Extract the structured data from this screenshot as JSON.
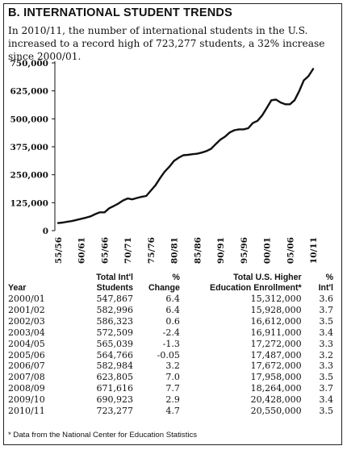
{
  "header": {
    "title": "B.  INTERNATIONAL STUDENT TRENDS",
    "subtitle": "In 2010/11, the number of international students in the U.S. increased to a record high of 723,277 students, a 32% increase since 2000/01."
  },
  "chart_data": {
    "type": "line",
    "title": "",
    "xlabel": "",
    "ylabel": "",
    "y_ticks": [
      "750,000",
      "625,000",
      "500,000",
      "375,000",
      "250,000",
      "125,000",
      "0"
    ],
    "y_tick_values": [
      750000,
      625000,
      500000,
      375000,
      250000,
      125000,
      0
    ],
    "ylim": [
      0,
      750000
    ],
    "x_ticks": [
      "55/56",
      "60/61",
      "65/66",
      "70/71",
      "75/76",
      "80/81",
      "85/86",
      "90/91",
      "95/96",
      "00/01",
      "05/06",
      "10/11"
    ],
    "grid": false,
    "series": [
      {
        "x": [
          1955,
          1956,
          1957,
          1958,
          1959,
          1960,
          1961,
          1962,
          1963,
          1964,
          1965,
          1966,
          1967,
          1968,
          1969,
          1970,
          1971,
          1972,
          1973,
          1974,
          1975,
          1976,
          1977,
          1978,
          1979,
          1980,
          1981,
          1982,
          1983,
          1984,
          1985,
          1986,
          1987,
          1988,
          1989,
          1990,
          1991,
          1992,
          1993,
          1994,
          1995,
          1996,
          1997,
          1998,
          1999,
          2000,
          2001,
          2002,
          2003,
          2004,
          2005,
          2006,
          2007,
          2008,
          2009,
          2010
        ],
        "values": [
          34000,
          36000,
          40000,
          43000,
          48000,
          53000,
          58000,
          64000,
          74000,
          82000,
          82000,
          100000,
          110000,
          121000,
          135000,
          144000,
          140000,
          146000,
          151000,
          155000,
          179000,
          203000,
          235000,
          264000,
          286000,
          312000,
          326000,
          337000,
          339000,
          342000,
          344000,
          349000,
          356000,
          366000,
          387000,
          407000,
          420000,
          439000,
          449000,
          453000,
          453000,
          458000,
          481000,
          491000,
          515000,
          548000,
          583000,
          586000,
          573000,
          565000,
          565000,
          583000,
          624000,
          672000,
          691000,
          723000
        ]
      }
    ]
  },
  "table": {
    "headers": [
      [
        "Year"
      ],
      [
        "Total Int'l",
        "Students"
      ],
      [
        "%",
        "Change"
      ],
      [
        "Total U.S. Higher",
        "Education Enrollment*"
      ],
      [
        "%",
        "Int'l"
      ]
    ],
    "rows": [
      [
        "2000/01",
        "547,867",
        "6.4",
        "15,312,000",
        "3.6"
      ],
      [
        "2001/02",
        "582,996",
        "6.4",
        "15,928,000",
        "3.7"
      ],
      [
        "2002/03",
        "586,323",
        "0.6",
        "16,612,000",
        "3.5"
      ],
      [
        "2003/04",
        "572,509",
        "-2.4",
        "16,911,000",
        "3.4"
      ],
      [
        "2004/05",
        "565,039",
        "-1.3",
        "17,272,000",
        "3.3"
      ],
      [
        "2005/06",
        "564,766",
        "-0.05",
        "17,487,000",
        "3.2"
      ],
      [
        "2006/07",
        "582,984",
        "3.2",
        "17,672,000",
        "3.3"
      ],
      [
        "2007/08",
        "623,805",
        "7.0",
        "17,958,000",
        "3.5"
      ],
      [
        "2008/09",
        "671,616",
        "7.7",
        "18,264,000",
        "3.7"
      ],
      [
        "2009/10",
        "690,923",
        "2.9",
        "20,428,000",
        "3.4"
      ],
      [
        "2010/11",
        "723,277",
        "4.7",
        "20,550,000",
        "3.5"
      ]
    ]
  },
  "footnote": "* Data from the National Center for Education Statistics",
  "colors": {
    "line": "#111111",
    "text": "#111111",
    "frame": "#222222"
  }
}
